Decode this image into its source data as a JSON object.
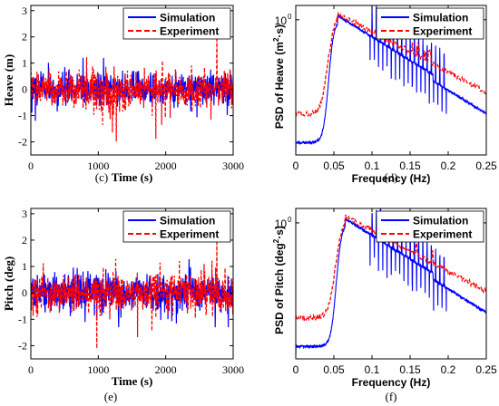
{
  "chart_data": [
    {
      "id": "c",
      "type": "line",
      "panel_label": "(c)",
      "xlabel": "Time (s)",
      "ylabel": "Heave (m)",
      "xlim": [
        0,
        3000
      ],
      "ylim": [
        -2.5,
        3.2
      ],
      "x_ticks": [
        "0",
        "1000",
        "2000",
        "3000"
      ],
      "y_ticks": [
        "-2",
        "-1",
        "0",
        "1",
        "2",
        "3"
      ],
      "grid": false,
      "legend_position": "top-right",
      "series": [
        {
          "name": "Simulation",
          "color": "#0000ff",
          "style": "solid",
          "amplitude": 1.2,
          "typical": 0.5
        },
        {
          "name": "Experiment",
          "color": "#ff0000",
          "style": "dashed",
          "amplitude": 2.2,
          "typical": 0.6
        }
      ]
    },
    {
      "id": "d",
      "type": "line",
      "panel_label": "(d)",
      "xlabel": "Frequency (Hz)",
      "ylabel": "PSD of Heave (m²·s)",
      "ylabel_main": "PSD of Heave (m",
      "ylabel_sup": "2",
      "ylabel_tail": "·s)",
      "yscale": "log",
      "xlim": [
        0,
        0.25
      ],
      "x_ticks": [
        "0",
        "0.05",
        "0.1",
        "0.15",
        "0.2",
        "0.25"
      ],
      "y_ticks": [
        "10",
        "0"
      ],
      "grid": false,
      "legend_position": "top-right",
      "peak_hz": 0.055,
      "series": [
        {
          "name": "Simulation",
          "color": "#0000ff",
          "style": "solid"
        },
        {
          "name": "Experiment",
          "color": "#ff0000",
          "style": "dashed"
        }
      ]
    },
    {
      "id": "e",
      "type": "line",
      "panel_label": "(e)",
      "xlabel": "Time (s)",
      "ylabel": "Pitch (deg)",
      "xlim": [
        0,
        3000
      ],
      "ylim": [
        -2.5,
        3.2
      ],
      "x_ticks": [
        "0",
        "1000",
        "2000",
        "3000"
      ],
      "y_ticks": [
        "-2",
        "-1",
        "0",
        "1",
        "2",
        "3"
      ],
      "grid": false,
      "legend_position": "top-right",
      "series": [
        {
          "name": "Simulation",
          "color": "#0000ff",
          "style": "solid",
          "amplitude": 1.3,
          "typical": 0.55
        },
        {
          "name": "Experiment",
          "color": "#ff0000",
          "style": "dashed",
          "amplitude": 2.1,
          "typical": 0.6
        }
      ]
    },
    {
      "id": "f",
      "type": "line",
      "panel_label": "(f)",
      "xlabel": "Frequency (Hz)",
      "ylabel": "PSD of Pitch (deg²·s)",
      "ylabel_main": "PSD of Pitch (deg",
      "ylabel_sup": "2",
      "ylabel_tail": "·s)",
      "yscale": "log",
      "xlim": [
        0,
        0.25
      ],
      "x_ticks": [
        "0",
        "0.05",
        "0.1",
        "0.15",
        "0.2",
        "0.25"
      ],
      "y_ticks": [
        "10",
        "0"
      ],
      "grid": false,
      "legend_position": "top-right",
      "peak_hz": 0.065,
      "series": [
        {
          "name": "Simulation",
          "color": "#0000ff",
          "style": "solid"
        },
        {
          "name": "Experiment",
          "color": "#ff0000",
          "style": "dashed"
        }
      ]
    }
  ]
}
